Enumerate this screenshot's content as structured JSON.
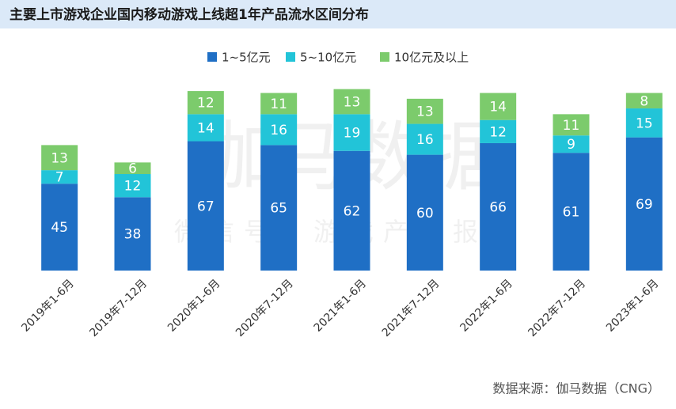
{
  "chart_data": {
    "type": "stacked_bar",
    "title": "主要上市游戏企业国内移动游戏上线超1年产品流水区间分布",
    "categories": [
      "2019年1-6月",
      "2019年7-12月",
      "2020年1-6月",
      "2020年7-12月",
      "2021年1-6月",
      "2021年7-12月",
      "2022年1-6月",
      "2022年7-12月",
      "2023年1-6月"
    ],
    "series": [
      {
        "name": "1~5亿元",
        "color": "#1f6fc5",
        "values": [
          45,
          38,
          67,
          65,
          62,
          60,
          66,
          61,
          69
        ]
      },
      {
        "name": "5~10亿元",
        "color": "#22c4d8",
        "values": [
          7,
          12,
          14,
          16,
          19,
          16,
          12,
          9,
          15
        ]
      },
      {
        "name": "10亿元及以上",
        "color": "#7ccb6c",
        "values": [
          13,
          6,
          12,
          11,
          13,
          13,
          14,
          11,
          8
        ]
      }
    ],
    "watermark": "伽马数据",
    "watermark_sub": "微信号：游戏产业报告",
    "source": "数据来源：伽马数据（CNG）"
  }
}
